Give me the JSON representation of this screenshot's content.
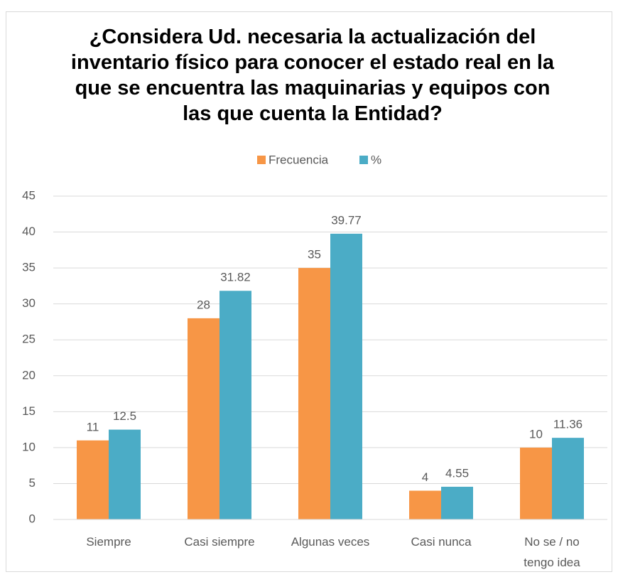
{
  "chart_data": {
    "type": "bar",
    "title": "¿Considera Ud. necesaria la actualización del inventario físico para conocer el estado real en la que se encuentra las maquinarias y equipos con las que cuenta la Entidad?",
    "categories": [
      "Siempre",
      "Casi siempre",
      "Algunas veces",
      "Casi nunca",
      "No se / no tengo idea"
    ],
    "series": [
      {
        "name": "Frecuencia",
        "color": "#f79646",
        "values": [
          11,
          28,
          35,
          4,
          10
        ]
      },
      {
        "name": "%",
        "color": "#4bacc6",
        "values": [
          12.5,
          31.82,
          39.77,
          4.55,
          11.36
        ]
      }
    ],
    "ylim": [
      0,
      45
    ],
    "yticks": [
      0,
      5,
      10,
      15,
      20,
      25,
      30,
      35,
      40,
      45
    ],
    "grid": true,
    "legend": "top"
  }
}
